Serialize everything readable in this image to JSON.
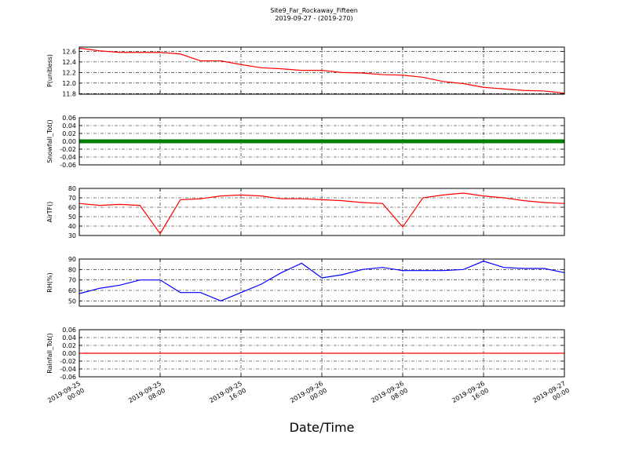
{
  "title": "Site9_Far_Rockaway_Fifteen",
  "subtitle": "2019-09-27 - (2019-270)",
  "xlabel": "Date/Time",
  "x": [
    "2019-09-25 00:00",
    "2019-09-25 02:00",
    "2019-09-25 04:00",
    "2019-09-25 06:00",
    "2019-09-25 08:00",
    "2019-09-25 10:00",
    "2019-09-25 12:00",
    "2019-09-25 14:00",
    "2019-09-25 16:00",
    "2019-09-25 18:00",
    "2019-09-25 20:00",
    "2019-09-25 22:00",
    "2019-09-26 00:00",
    "2019-09-26 02:00",
    "2019-09-26 04:00",
    "2019-09-26 06:00",
    "2019-09-26 08:00",
    "2019-09-26 10:00",
    "2019-09-26 12:00",
    "2019-09-26 14:00",
    "2019-09-26 16:00",
    "2019-09-26 18:00",
    "2019-09-26 20:00",
    "2019-09-26 22:00",
    "2019-09-27 00:00"
  ],
  "xlim": [
    "2019-09-25 00:00",
    "2019-09-27 00:00"
  ],
  "xticks": [
    "2019-09-25 00:00",
    "2019-09-25 08:00",
    "2019-09-25 16:00",
    "2019-09-26 00:00",
    "2019-09-26 08:00",
    "2019-09-26 16:00",
    "2019-09-27 00:00"
  ],
  "chart_data": [
    {
      "type": "line",
      "ylabel": "P(unitless)",
      "ylim": [
        11.79,
        12.68
      ],
      "yticks": [
        11.8,
        {
          "value": 12,
          "label": "12.0"
        },
        12.2,
        12.4,
        12.6
      ],
      "grid": true,
      "series": [
        {
          "color": "#ff0000",
          "values": [
            12.66,
            12.61,
            12.58,
            12.58,
            12.58,
            12.55,
            12.42,
            12.42,
            12.35,
            12.29,
            12.27,
            12.24,
            12.24,
            12.2,
            12.19,
            12.16,
            12.15,
            12.11,
            12.03,
            11.99,
            11.92,
            11.89,
            11.86,
            11.85,
            11.81
          ]
        }
      ]
    },
    {
      "type": "line",
      "ylabel": "Snowfall_Tot()",
      "ylim": [
        -0.06,
        0.06
      ],
      "yticks": [
        -0.06,
        -0.04,
        -0.02,
        {
          "value": 0,
          "label": "0.00"
        },
        0.02,
        0.04,
        0.06
      ],
      "grid": true,
      "series": [
        {
          "color": "#008000",
          "marker": "o",
          "values": [
            0,
            0,
            0,
            0,
            0,
            0,
            0,
            0,
            0,
            0,
            0,
            0,
            0,
            0,
            0,
            0,
            0,
            0,
            0,
            0,
            0,
            0,
            0,
            0,
            0
          ]
        }
      ]
    },
    {
      "type": "line",
      "ylabel": "AirTF()",
      "ylim": [
        30,
        80
      ],
      "yticks": [
        30,
        40,
        50,
        60,
        70,
        80
      ],
      "grid": true,
      "series": [
        {
          "color": "#ff0000",
          "values": [
            64,
            62,
            63,
            62,
            32,
            68,
            69,
            72,
            73,
            72,
            69,
            69,
            68,
            67,
            65,
            64,
            39,
            70,
            73,
            75,
            72,
            70,
            67,
            65,
            64
          ]
        }
      ]
    },
    {
      "type": "line",
      "ylabel": "RH(%)",
      "ylim": [
        45,
        90
      ],
      "yticks": [
        50,
        60,
        70,
        80,
        90
      ],
      "grid": true,
      "series": [
        {
          "color": "#0000ff",
          "values": [
            57,
            62,
            65,
            70,
            70,
            58,
            58,
            50,
            58,
            66,
            77,
            86,
            72,
            75,
            80,
            82,
            79,
            79,
            79,
            80,
            88,
            82,
            81,
            81,
            77
          ]
        }
      ]
    },
    {
      "type": "line",
      "ylabel": "Rainfall_Tot()",
      "ylim": [
        -0.06,
        0.06
      ],
      "yticks": [
        -0.06,
        -0.04,
        -0.02,
        {
          "value": 0,
          "label": "0.00"
        },
        0.02,
        0.04,
        0.06
      ],
      "grid": true,
      "series": [
        {
          "color": "#ff0000",
          "values": [
            0,
            0,
            0,
            0,
            0,
            0,
            0,
            0,
            0,
            0,
            0,
            0,
            0,
            0,
            0,
            0,
            0,
            0,
            0,
            0,
            0,
            0,
            0,
            0,
            0
          ]
        }
      ]
    }
  ]
}
